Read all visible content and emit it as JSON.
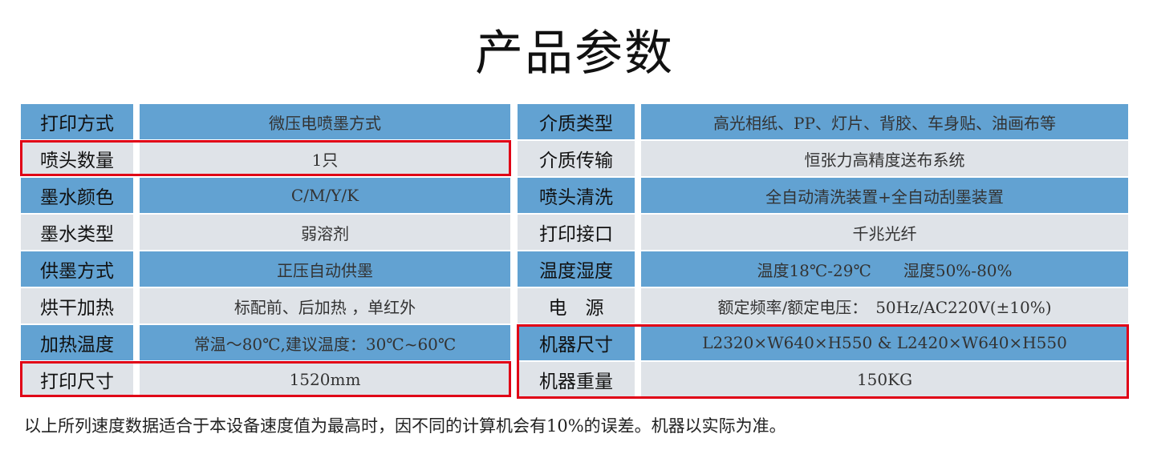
{
  "title": "产品参数",
  "colors": {
    "header_row": "#62a2d2",
    "alt_row": "#dfe3e8",
    "highlight": "#e00016"
  },
  "left": [
    {
      "label": "打印方式",
      "value": "微压电喷墨方式"
    },
    {
      "label": "喷头数量",
      "value": "1只",
      "highlighted": true
    },
    {
      "label": "墨水颜色",
      "value": "C/M/Y/K"
    },
    {
      "label": "墨水类型",
      "value": "弱溶剂"
    },
    {
      "label": "供墨方式",
      "value": "正压自动供墨"
    },
    {
      "label": "烘干加热",
      "value": "标配前、后加热 ，单红外"
    },
    {
      "label": "加热温度",
      "value": "常温～80℃,建议温度：30℃~60℃"
    },
    {
      "label": "打印尺寸",
      "value": "1520mm",
      "highlighted": true
    }
  ],
  "right": [
    {
      "label": "介质类型",
      "value": "高光相纸、PP、灯片、背胶、车身贴、油画布等"
    },
    {
      "label": "介质传输",
      "value": "恒张力高精度送布系统"
    },
    {
      "label": "喷头清洗",
      "value": "全自动清洗装置+全自动刮墨装置"
    },
    {
      "label": "打印接口",
      "value": "千兆光纤"
    },
    {
      "label": "温度湿度",
      "value": "温度18℃-29℃　　湿度50%-80%"
    },
    {
      "label": "电　源",
      "value": "额定频率/额定电压：　50Hz/AC220V(±10%)"
    },
    {
      "label": "机器尺寸",
      "value": "L2320×W640×H550 & L2420×W640×H550",
      "highlighted": true
    },
    {
      "label": "机器重量",
      "value": "150KG",
      "highlighted": true
    }
  ],
  "footnote": "以上所列速度数据适合于本设备速度值为最高时，因不同的计算机会有10%的误差。机器以实际为准。"
}
